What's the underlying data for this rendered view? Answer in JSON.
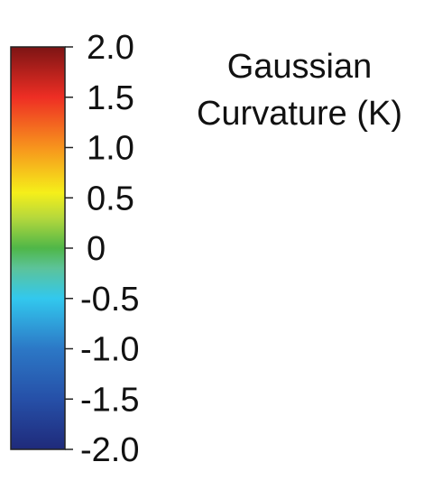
{
  "chart_data": {
    "type": "colorbar",
    "title_lines": [
      "Gaussian",
      "Curvature (K)"
    ],
    "ticks": [
      "2.0",
      "1.5",
      "1.0",
      "0.5",
      "0",
      "-0.5",
      "-1.0",
      "-1.5",
      "-2.0"
    ],
    "tick_values": [
      2.0,
      1.5,
      1.0,
      0.5,
      0,
      -0.5,
      -1.0,
      -1.5,
      -2.0
    ],
    "range": [
      -2.0,
      2.0
    ],
    "orientation": "vertical",
    "colormap": "jet-like",
    "color_stops": [
      {
        "value": -2.0,
        "color": "#1f2a7a"
      },
      {
        "value": -1.5,
        "color": "#2650a8"
      },
      {
        "value": -1.0,
        "color": "#2c78c6"
      },
      {
        "value": -0.5,
        "color": "#32c8ee"
      },
      {
        "value": -0.2,
        "color": "#5cc39a"
      },
      {
        "value": 0.0,
        "color": "#4fb748"
      },
      {
        "value": 0.3,
        "color": "#b5d83c"
      },
      {
        "value": 0.55,
        "color": "#f5ef1a"
      },
      {
        "value": 1.0,
        "color": "#f7941d"
      },
      {
        "value": 1.5,
        "color": "#ee2e24"
      },
      {
        "value": 2.0,
        "color": "#7d1414"
      }
    ]
  }
}
